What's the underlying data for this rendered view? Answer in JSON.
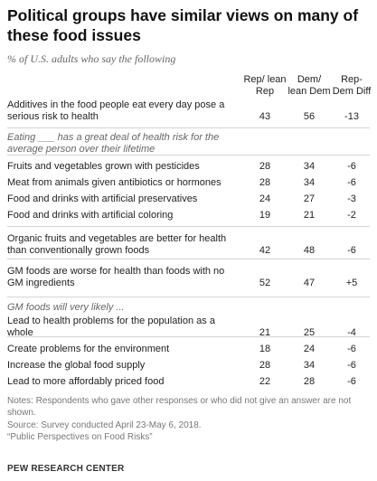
{
  "chart_data": {
    "type": "table",
    "title": "Political groups have similar views on many of these food issues",
    "subtitle": "% of U.S. adults who say the following",
    "columns": [
      "Rep/ lean Rep",
      "Dem/ lean Dem",
      "Rep-Dem Diff"
    ],
    "rows": [
      {
        "label": "Additives in the food people eat every day pose a serious risk to health",
        "rep": "43",
        "dem": "56",
        "diff": "-13"
      },
      {
        "section": "Eating ___ has a great deal of health risk for the average person over their lifetime"
      },
      {
        "label": "Fruits and vegetables grown with pesticides",
        "rep": "28",
        "dem": "34",
        "diff": "-6"
      },
      {
        "label": "Meat from animals given antibiotics or hormones",
        "rep": "28",
        "dem": "34",
        "diff": "-6"
      },
      {
        "label": "Food and drinks with artificial preservatives",
        "rep": "24",
        "dem": "27",
        "diff": "-3"
      },
      {
        "label": "Food and drinks with artificial coloring",
        "rep": "19",
        "dem": "21",
        "diff": "-2"
      },
      {
        "label": "Organic fruits and vegetables are better for health than conventionally grown foods",
        "rep": "42",
        "dem": "48",
        "diff": "-6"
      },
      {
        "label": "GM foods are worse for health than foods with no GM ingredients",
        "rep": "52",
        "dem": "47",
        "diff": "+5"
      },
      {
        "section": "GM foods will very likely ..."
      },
      {
        "label": "Lead to health problems for the population as a whole",
        "rep": "21",
        "dem": "25",
        "diff": "-4"
      },
      {
        "label": "Create problems for the environment",
        "rep": "18",
        "dem": "24",
        "diff": "-6"
      },
      {
        "label": "Increase the global food supply",
        "rep": "28",
        "dem": "34",
        "diff": "-6"
      },
      {
        "label": "Lead to more affordably priced food",
        "rep": "22",
        "dem": "28",
        "diff": "-6"
      }
    ]
  },
  "notes": {
    "note": "Notes: Respondents who gave other responses or who did not give an answer are not shown.",
    "source": "Source: Survey conducted April 23-May 6, 2018.",
    "report": "“Public Perspectives on Food Risks”"
  },
  "footer": "PEW RESEARCH CENTER"
}
